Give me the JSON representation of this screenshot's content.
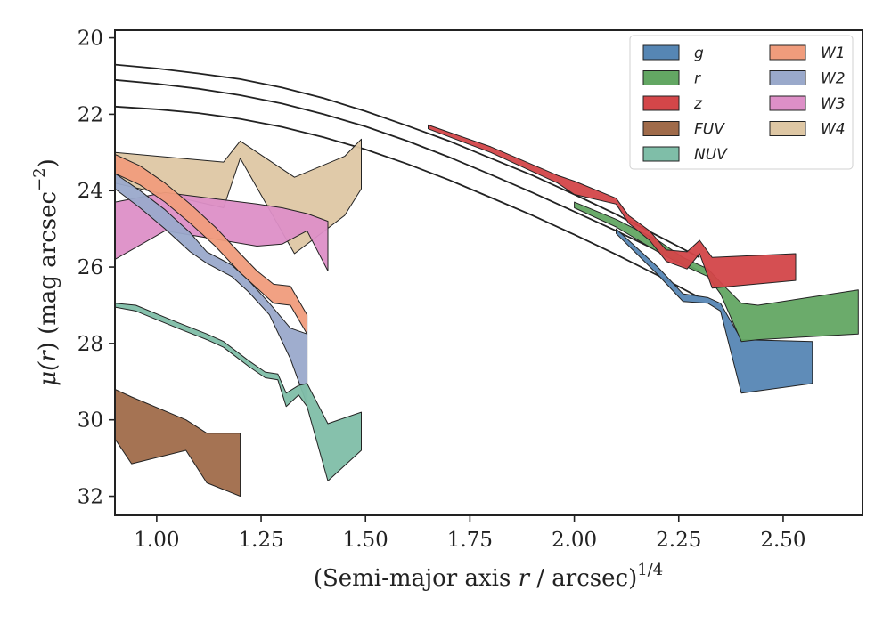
{
  "chart_data": {
    "type": "area",
    "title": "",
    "xlabel": {
      "pre": "(Semi-major axis ",
      "var": "r",
      "post": " / arcsec)",
      "sup": "1/4"
    },
    "ylabel": {
      "pre": "μ(",
      "var": "r",
      "post": ") (mag arcsec",
      "sup": "−2",
      "close": ")"
    },
    "xlim": [
      0.9,
      2.69
    ],
    "ylim": [
      32.5,
      19.8
    ],
    "y_inverted": true,
    "grid": false,
    "legend_position": "top-right",
    "x_ticks": [
      {
        "value": 1.0,
        "label": "1.00"
      },
      {
        "value": 1.25,
        "label": "1.25"
      },
      {
        "value": 1.5,
        "label": "1.50"
      },
      {
        "value": 1.75,
        "label": "1.75"
      },
      {
        "value": 2.0,
        "label": "2.00"
      },
      {
        "value": 2.25,
        "label": "2.25"
      },
      {
        "value": 2.5,
        "label": "2.50"
      }
    ],
    "y_ticks": [
      {
        "value": 20,
        "label": "20"
      },
      {
        "value": 22,
        "label": "22"
      },
      {
        "value": 24,
        "label": "24"
      },
      {
        "value": 26,
        "label": "26"
      },
      {
        "value": 28,
        "label": "28"
      },
      {
        "value": 30,
        "label": "30"
      },
      {
        "value": 32,
        "label": "32"
      }
    ],
    "model_curves": [
      {
        "x": [
          0.9,
          1.0,
          1.1,
          1.2,
          1.3,
          1.4,
          1.5,
          1.6,
          1.7,
          1.8,
          1.9,
          2.0,
          2.1,
          2.2,
          2.3
        ],
        "y": [
          20.7,
          20.8,
          20.93,
          21.08,
          21.3,
          21.58,
          21.92,
          22.3,
          22.7,
          23.15,
          23.6,
          24.1,
          24.62,
          25.18,
          25.75
        ]
      },
      {
        "x": [
          0.9,
          1.0,
          1.1,
          1.2,
          1.3,
          1.4,
          1.5,
          1.6,
          1.7,
          1.8,
          1.9,
          2.0,
          2.1,
          2.2,
          2.3
        ],
        "y": [
          21.1,
          21.2,
          21.33,
          21.5,
          21.72,
          22.0,
          22.32,
          22.7,
          23.12,
          23.58,
          24.05,
          24.55,
          25.05,
          25.58,
          26.1
        ]
      },
      {
        "x": [
          0.9,
          1.0,
          1.1,
          1.2,
          1.3,
          1.4,
          1.5,
          1.6,
          1.7,
          1.8,
          1.9,
          2.0,
          2.1,
          2.2,
          2.3
        ],
        "y": [
          21.8,
          21.87,
          21.97,
          22.12,
          22.33,
          22.6,
          22.92,
          23.3,
          23.72,
          24.18,
          24.65,
          25.15,
          25.67,
          26.22,
          26.8
        ]
      }
    ],
    "series": [
      {
        "name": "W4",
        "color": "#dec7a4",
        "x": [
          0.9,
          1.16,
          1.2,
          1.33,
          1.45,
          1.49
        ],
        "low": [
          23.0,
          23.25,
          22.7,
          23.65,
          23.1,
          22.65
        ],
        "high": [
          23.8,
          24.45,
          23.15,
          25.65,
          24.65,
          23.95
        ]
      },
      {
        "name": "W3",
        "color": "#dd8fc7",
        "x": [
          0.9,
          1.02,
          1.24,
          1.3,
          1.36,
          1.41
        ],
        "low": [
          24.3,
          24.05,
          24.35,
          24.45,
          24.6,
          24.8
        ],
        "high": [
          25.8,
          25.05,
          25.45,
          25.4,
          25.05,
          26.1
        ]
      },
      {
        "name": "W1",
        "color": "#f09c7c",
        "x": [
          0.9,
          0.96,
          1.02,
          1.08,
          1.14,
          1.2,
          1.24,
          1.28,
          1.32,
          1.36
        ],
        "low": [
          23.05,
          23.35,
          23.8,
          24.35,
          24.95,
          25.65,
          26.1,
          26.45,
          26.5,
          27.25
        ],
        "high": [
          23.55,
          23.85,
          24.3,
          24.85,
          25.45,
          26.15,
          26.55,
          26.95,
          27.0,
          27.75
        ]
      },
      {
        "name": "W2",
        "color": "#9aa9cb",
        "x": [
          0.9,
          0.96,
          1.02,
          1.08,
          1.12,
          1.18,
          1.22,
          1.27,
          1.32,
          1.36
        ],
        "low": [
          23.55,
          24.0,
          24.5,
          25.1,
          25.6,
          25.95,
          26.35,
          26.95,
          27.6,
          27.75
        ],
        "high": [
          23.95,
          24.45,
          25.0,
          25.6,
          25.9,
          26.25,
          26.65,
          27.25,
          28.4,
          29.6
        ]
      },
      {
        "name": "NUV",
        "color": "#7fbea8",
        "x": [
          0.9,
          0.95,
          1.05,
          1.12,
          1.16,
          1.22,
          1.26,
          1.29,
          1.31,
          1.34,
          1.36,
          1.41,
          1.49
        ],
        "low": [
          26.95,
          27.0,
          27.45,
          27.75,
          27.95,
          28.45,
          28.75,
          28.8,
          29.3,
          29.1,
          29.05,
          30.1,
          29.8
        ],
        "high": [
          27.05,
          27.15,
          27.6,
          27.9,
          28.1,
          28.6,
          28.9,
          28.95,
          29.65,
          29.35,
          29.65,
          31.6,
          30.8
        ]
      },
      {
        "name": "FUV",
        "color": "#a06b4a",
        "x": [
          0.9,
          0.94,
          1.07,
          1.12,
          1.2
        ],
        "low": [
          29.2,
          29.4,
          30.0,
          30.35,
          30.35
        ],
        "high": [
          30.5,
          31.15,
          30.8,
          31.65,
          32.0
        ]
      },
      {
        "name": "g",
        "color": "#5686b4",
        "x": [
          2.1,
          2.2,
          2.26,
          2.32,
          2.35,
          2.4,
          2.57
        ],
        "low": [
          25.0,
          26.0,
          26.7,
          26.8,
          26.95,
          27.9,
          27.95
        ],
        "high": [
          25.12,
          26.2,
          26.9,
          26.95,
          27.15,
          29.3,
          29.05
        ]
      },
      {
        "name": "r",
        "color": "#63a763",
        "x": [
          2.0,
          2.1,
          2.2,
          2.26,
          2.32,
          2.35,
          2.4,
          2.44,
          2.68
        ],
        "low": [
          24.3,
          24.75,
          25.3,
          25.75,
          26.05,
          26.4,
          26.95,
          27.0,
          26.6
        ],
        "high": [
          24.45,
          24.95,
          25.6,
          25.95,
          26.25,
          26.7,
          27.95,
          27.9,
          27.75
        ]
      },
      {
        "name": "z",
        "color": "#d34649",
        "x": [
          1.65,
          1.8,
          1.96,
          2.0,
          2.1,
          2.13,
          2.18,
          2.22,
          2.27,
          2.3,
          2.33,
          2.53
        ],
        "low": [
          22.28,
          22.85,
          23.6,
          23.75,
          24.2,
          24.65,
          25.05,
          25.55,
          25.6,
          25.3,
          25.75,
          25.65
        ],
        "high": [
          22.38,
          23.0,
          23.8,
          24.1,
          24.35,
          24.85,
          25.3,
          25.85,
          26.05,
          25.65,
          26.55,
          26.35
        ]
      }
    ],
    "legend_entries": [
      "g",
      "r",
      "z",
      "FUV",
      "NUV",
      "W1",
      "W2",
      "W3",
      "W4"
    ]
  }
}
